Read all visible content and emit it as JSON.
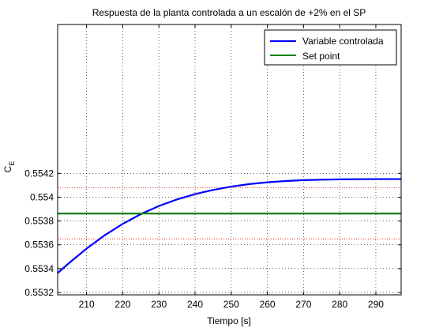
{
  "chart_data": {
    "type": "line",
    "title": "Respuesta de la planta controlada a un escalón de +2% en el SP",
    "xlabel": "Tiempo [s]",
    "ylabel": "C",
    "ylabel_sub": "E",
    "xlim": [
      202,
      297
    ],
    "ylim": [
      0.55318,
      0.55545
    ],
    "xticks": [
      210,
      220,
      230,
      240,
      250,
      260,
      270,
      280,
      290
    ],
    "xtick_labels": [
      "210",
      "220",
      "230",
      "240",
      "250",
      "260",
      "270",
      "280",
      "290"
    ],
    "yticks": [
      0.5532,
      0.5534,
      0.5536,
      0.5538,
      0.554,
      0.5542
    ],
    "ytick_labels": [
      "0.5532",
      "0.5534",
      "0.5536",
      "0.5538",
      "0.554",
      "0.5542"
    ],
    "grid": true,
    "legend_position": "top-right",
    "red_reference_lines": [
      0.55365,
      0.55408
    ],
    "series": [
      {
        "name": "Variable controlada",
        "color": "#0000ff",
        "x": [
          202,
          205,
          210,
          215,
          220,
          225,
          230,
          235,
          240,
          245,
          250,
          255,
          260,
          265,
          270,
          275,
          280,
          285,
          290,
          295,
          297
        ],
        "y": [
          0.553363,
          0.553443,
          0.553568,
          0.55368,
          0.553776,
          0.553858,
          0.553926,
          0.553981,
          0.554026,
          0.554061,
          0.554089,
          0.55411,
          0.554125,
          0.554136,
          0.554143,
          0.554147,
          0.55415,
          0.554151,
          0.554152,
          0.554152,
          0.554152
        ]
      },
      {
        "name": "Set point",
        "color": "#008000",
        "x": [
          202,
          297
        ],
        "y": [
          0.553863,
          0.553863
        ]
      }
    ]
  }
}
